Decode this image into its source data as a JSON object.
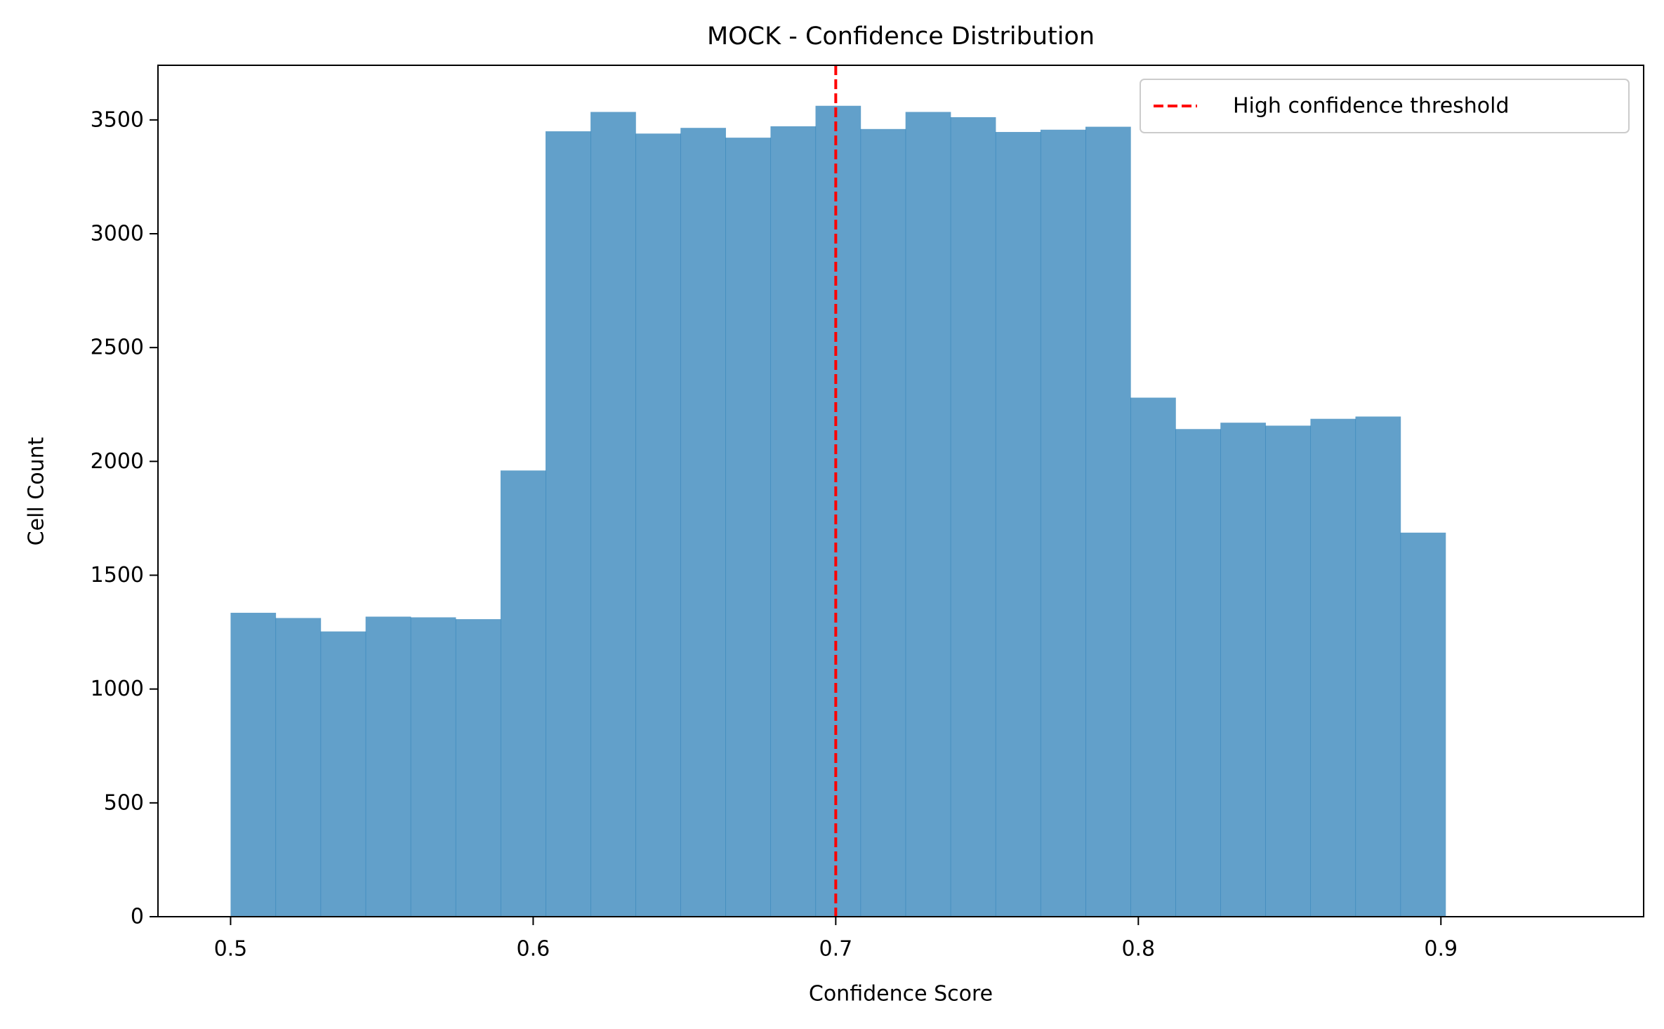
{
  "chart_data": {
    "type": "bar",
    "title": "MOCK - Confidence Distribution",
    "xlabel": "Confidence Score",
    "ylabel": "Cell Count",
    "xlim": [
      0.476,
      0.967
    ],
    "ylim": [
      0,
      3740
    ],
    "xticks": [
      0.5,
      0.6,
      0.7,
      0.8,
      0.9
    ],
    "xtick_labels": [
      "0.5",
      "0.6",
      "0.7",
      "0.8",
      "0.9"
    ],
    "yticks": [
      0,
      500,
      1000,
      1500,
      2000,
      2500,
      3000,
      3500
    ],
    "ytick_labels": [
      "0",
      "500",
      "1000",
      "1500",
      "2000",
      "2500",
      "3000",
      "3500"
    ],
    "grid": false,
    "bar_color": "#1f77b4",
    "bar_opacity": 0.7,
    "bins": {
      "start": 0.5,
      "width": 0.01487,
      "counts": [
        1335,
        1312,
        1253,
        1318,
        1315,
        1307,
        1960,
        3450,
        3535,
        3440,
        3465,
        3422,
        3472,
        3562,
        3460,
        3535,
        3512,
        3447,
        3457,
        3470,
        2280,
        2142,
        2170,
        2157,
        2187,
        2197,
        1687
      ]
    },
    "threshold": {
      "x": 0.7,
      "label": "High confidence threshold",
      "color": "#ff0000",
      "style": "dashed"
    },
    "legend": {
      "position": "top-right",
      "entries": [
        "High confidence threshold"
      ]
    }
  }
}
